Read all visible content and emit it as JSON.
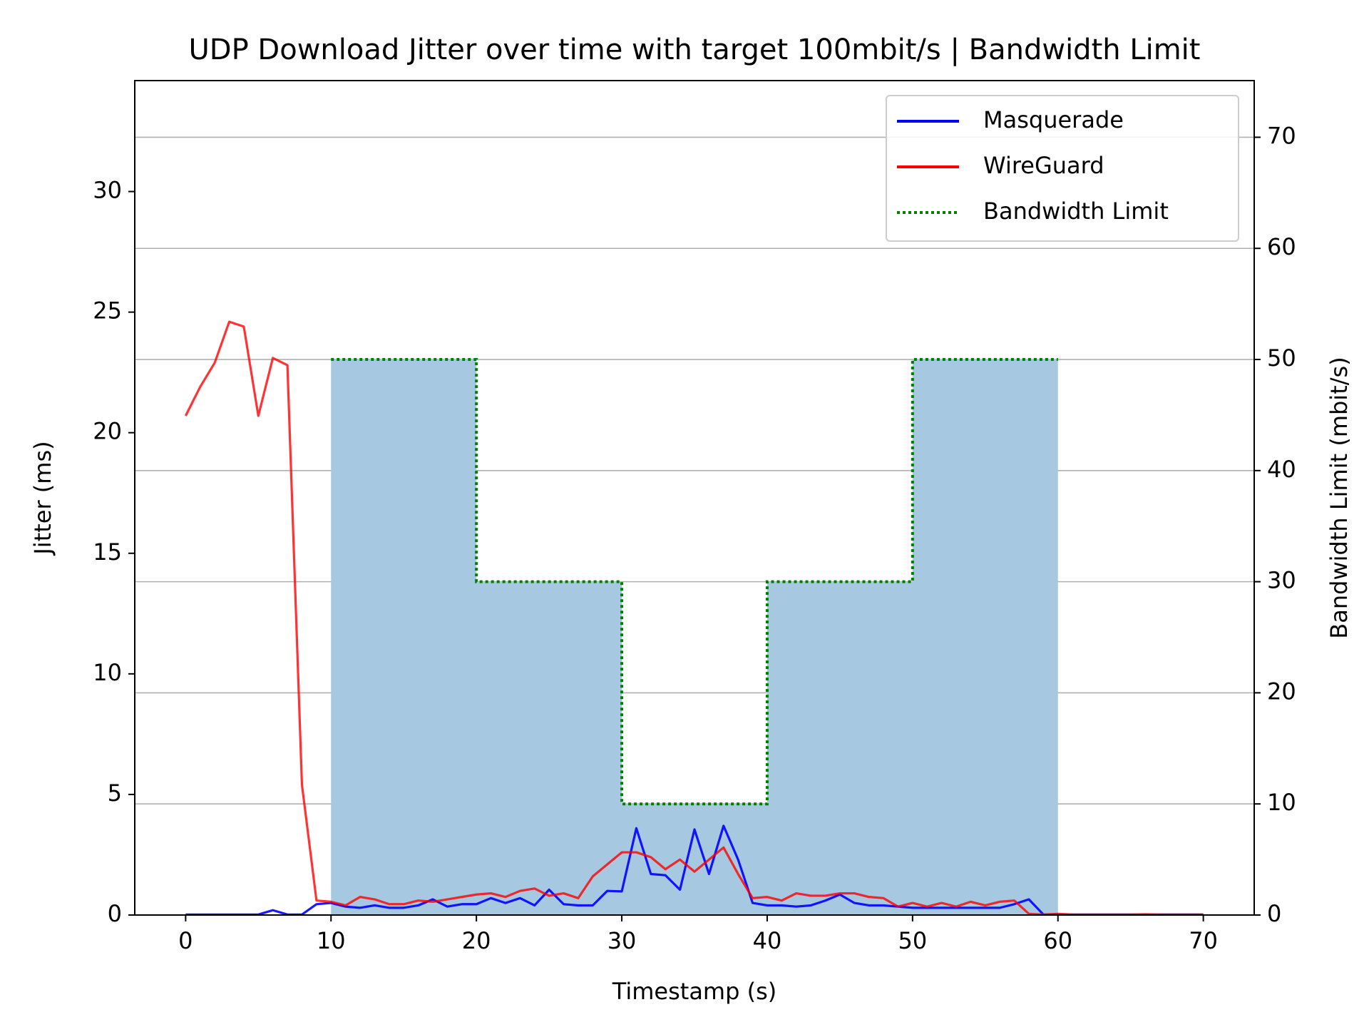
{
  "chart_data": {
    "type": "line",
    "title": "UDP Download Jitter over time with target 100mbit/s | Bandwidth Limit",
    "x_label": "Timestamp (s)",
    "y_label": "Jitter (ms)",
    "y2_label": "Bandwidth Limit (mbit/s)",
    "xlim": [
      -3.5,
      73.5
    ],
    "xticks": [
      0,
      10,
      20,
      30,
      40,
      50,
      60,
      70
    ],
    "ylim": [
      0,
      34.6
    ],
    "yticks": [
      0,
      5,
      10,
      15,
      20,
      25,
      30
    ],
    "y2lim": [
      0,
      75.1
    ],
    "y2ticks": [
      0,
      10,
      20,
      30,
      40,
      50,
      60,
      70
    ],
    "y2_color": "#008000",
    "grid": "y2",
    "legend": "upper right",
    "x": [
      0,
      1,
      2,
      3,
      4,
      5,
      6,
      7,
      8,
      9,
      10,
      11,
      12,
      13,
      14,
      15,
      16,
      17,
      18,
      19,
      20,
      21,
      22,
      23,
      24,
      25,
      26,
      27,
      28,
      29,
      30,
      31,
      32,
      33,
      34,
      35,
      36,
      37,
      38,
      39,
      40,
      41,
      42,
      43,
      44,
      45,
      46,
      47,
      48,
      49,
      50,
      51,
      52,
      53,
      54,
      55,
      56,
      57,
      58,
      59,
      60,
      61,
      62,
      63,
      64,
      65,
      66,
      67,
      68,
      69,
      70
    ],
    "series": [
      {
        "name": "Bandwidth Limit",
        "color": "#008000",
        "style": "step-dotted",
        "axis": "y2",
        "fill": "#a6c8e0",
        "x": [
          10,
          20,
          30,
          40,
          50,
          60
        ],
        "values": [
          50,
          30,
          10,
          30,
          50,
          50
        ]
      },
      {
        "name": "Masquerade",
        "color": "#0000ff",
        "values": [
          0.02,
          0.02,
          0.02,
          0.02,
          0.02,
          0.02,
          0.2,
          0.02,
          0.02,
          0.45,
          0.5,
          0.35,
          0.3,
          0.4,
          0.3,
          0.3,
          0.4,
          0.65,
          0.35,
          0.45,
          0.45,
          0.7,
          0.5,
          0.7,
          0.4,
          1.05,
          0.45,
          0.4,
          0.4,
          1.0,
          0.98,
          3.6,
          1.7,
          1.65,
          1.05,
          3.55,
          1.7,
          3.7,
          2.3,
          0.5,
          0.4,
          0.4,
          0.35,
          0.4,
          0.6,
          0.85,
          0.5,
          0.4,
          0.4,
          0.35,
          0.3,
          0.3,
          0.3,
          0.3,
          0.3,
          0.3,
          0.3,
          0.45,
          0.65,
          0.02,
          0.02,
          0.02,
          0.02,
          0.02,
          0.02,
          0.02,
          0.02,
          0.02,
          0.02,
          0.02,
          0.02
        ]
      },
      {
        "name": "WireGuard",
        "color": "#ff0000",
        "values": [
          20.7,
          21.9,
          22.9,
          24.6,
          24.4,
          20.7,
          23.1,
          22.8,
          5.4,
          0.6,
          0.55,
          0.4,
          0.75,
          0.65,
          0.45,
          0.45,
          0.6,
          0.55,
          0.65,
          0.75,
          0.85,
          0.9,
          0.75,
          1.0,
          1.1,
          0.8,
          0.9,
          0.7,
          1.6,
          2.1,
          2.6,
          2.6,
          2.4,
          1.9,
          2.3,
          1.8,
          2.3,
          2.8,
          1.7,
          0.7,
          0.75,
          0.6,
          0.9,
          0.8,
          0.8,
          0.9,
          0.9,
          0.75,
          0.7,
          0.35,
          0.5,
          0.35,
          0.5,
          0.35,
          0.55,
          0.4,
          0.55,
          0.6,
          0.05,
          0.02,
          0.05,
          0.02,
          0.02,
          0.02,
          0.02,
          0.02,
          0.03,
          0.02,
          0.02,
          0.02,
          0.02
        ]
      }
    ]
  }
}
